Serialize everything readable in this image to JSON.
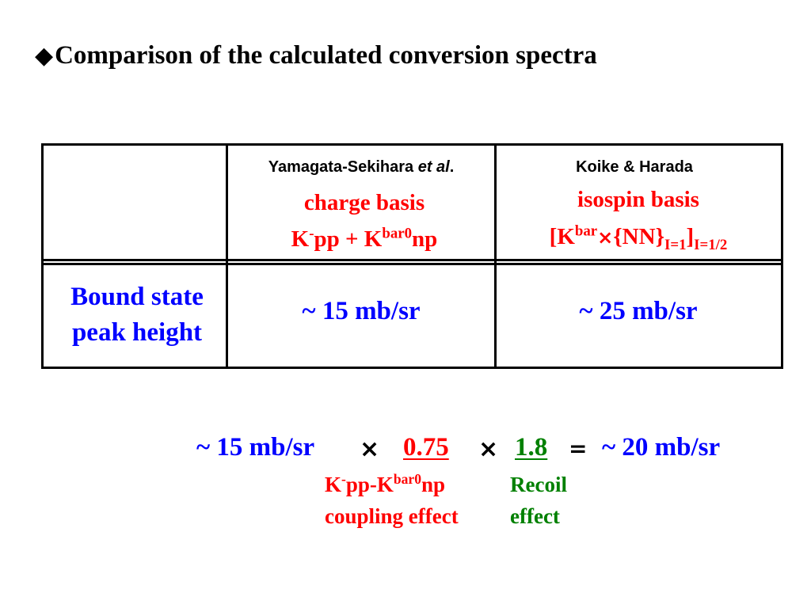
{
  "title": {
    "marker": "◆",
    "text": "Comparison of the calculated conversion spectra"
  },
  "table": {
    "col1": {
      "author_main": "Yamagata-Sekihara ",
      "author_italic": "et al",
      "author_end": ".",
      "basis": "charge basis",
      "formula": {
        "k": "K",
        "k_sup": "-",
        "pp": "pp + K",
        "kbar_sup": "bar0",
        "np": "np"
      }
    },
    "col2": {
      "author": "Koike & Harada",
      "basis": "isospin basis",
      "formula": {
        "open": "[K",
        "kbar_sup": "bar",
        "times": "×",
        "nn": "{NN}",
        "nn_sub": "I=1",
        "close": "]",
        "close_sub": "I=1/2"
      }
    },
    "row": {
      "label_line1": "Bound state",
      "label_line2": "peak height",
      "value1": "~ 15 mb/sr",
      "value2": "~ 25 mb/sr"
    }
  },
  "equation": {
    "lhs": "~ 15 mb/sr",
    "times": "×",
    "factor1": "0.75",
    "factor2": "1.8",
    "equals": "=",
    "rhs": "~ 20 mb/sr",
    "note1": {
      "k": "K",
      "k_sup": "-",
      "mid": "pp-K",
      "kbar_sup": "bar0",
      "np": "np",
      "line2": "coupling effect"
    },
    "note2": {
      "line1": "Recoil",
      "line2": "effect"
    }
  },
  "colors": {
    "red": "#ff0000",
    "blue": "#0000ff",
    "green": "#008000"
  }
}
